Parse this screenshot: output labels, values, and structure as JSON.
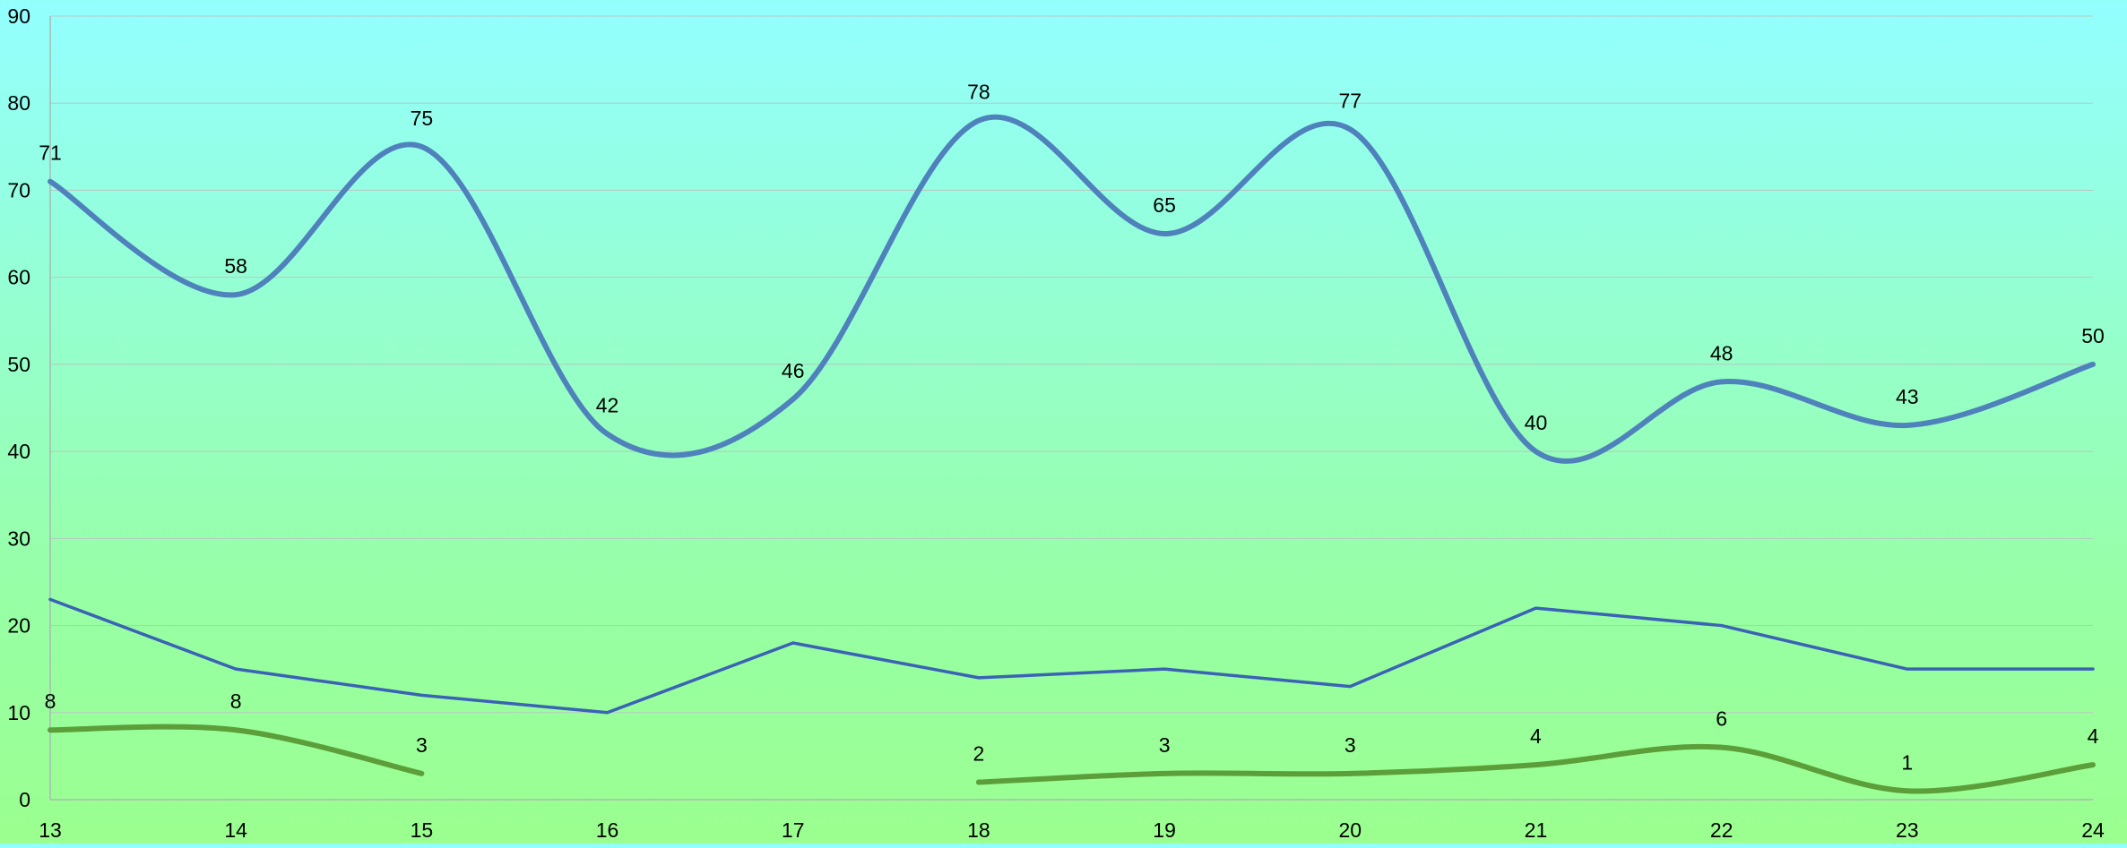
{
  "chart_data": {
    "type": "line",
    "x": [
      "13",
      "14",
      "15",
      "16",
      "17",
      "18",
      "19",
      "20",
      "21",
      "22",
      "23",
      "24"
    ],
    "ylim": [
      0,
      90
    ],
    "yticks": [
      "0",
      "10",
      "20",
      "30",
      "40",
      "50",
      "60",
      "70",
      "80",
      "90"
    ],
    "grid": true,
    "legend": "none",
    "series": [
      {
        "color": "#4f81bd",
        "smooth": true,
        "thick": true,
        "labels": true,
        "values": [
          71,
          58,
          75,
          42,
          46,
          78,
          65,
          77,
          40,
          48,
          43,
          50
        ]
      },
      {
        "color": "#3a62b5",
        "smooth": false,
        "thick": false,
        "labels": false,
        "values": [
          23,
          15,
          12,
          10,
          18,
          14,
          15,
          13,
          22,
          20,
          15,
          15
        ]
      },
      {
        "color": "#5c9e3a",
        "smooth": true,
        "thick": true,
        "labels": true,
        "values": [
          8,
          8,
          3,
          null,
          null,
          2,
          3,
          3,
          4,
          6,
          1,
          4
        ]
      }
    ]
  }
}
